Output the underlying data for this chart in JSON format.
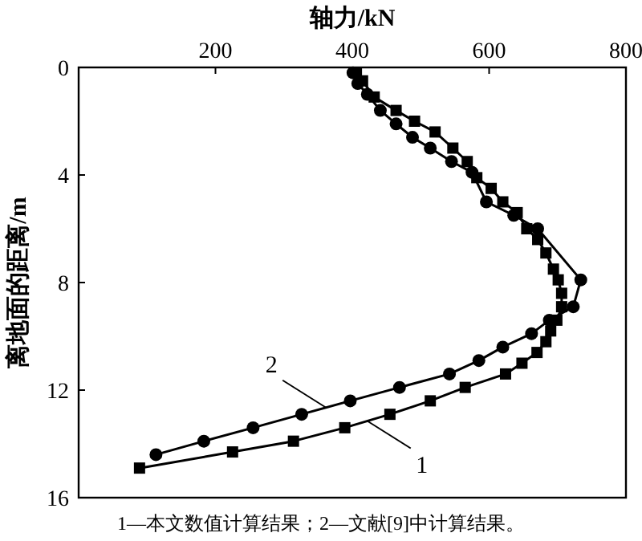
{
  "chart_data": {
    "type": "line",
    "xlabel": "轴力/kN",
    "ylabel": "离地面的距离/m",
    "xlim": [
      0,
      800
    ],
    "xticks": [
      {
        "value": 0,
        "label": null
      },
      200,
      400,
      600,
      800
    ],
    "ylim": [
      16,
      0
    ],
    "yticks": [
      0,
      4,
      8,
      12,
      16
    ],
    "grid": false,
    "line_style": "solid",
    "series": [
      {
        "name": "1",
        "color": "#000000",
        "marker": "square",
        "x": [
          406,
          415,
          432,
          464,
          491,
          521,
          547,
          568,
          582,
          603,
          620,
          641,
          655,
          671,
          683,
          694,
          701,
          706,
          706,
          699,
          690,
          683,
          670,
          648,
          624,
          565,
          514,
          455,
          389,
          314,
          225,
          89
        ],
        "values": [
          0.2,
          0.5,
          1.1,
          1.6,
          2.0,
          2.4,
          3.0,
          3.5,
          4.1,
          4.5,
          5.0,
          5.4,
          6.0,
          6.4,
          6.9,
          7.5,
          7.9,
          8.4,
          8.9,
          9.4,
          9.8,
          10.2,
          10.6,
          11.0,
          11.4,
          11.9,
          12.4,
          12.9,
          13.4,
          13.9,
          14.3,
          14.9
        ]
      },
      {
        "name": "2",
        "color": "#000000",
        "marker": "circle",
        "x": [
          401,
          408,
          422,
          441,
          464,
          488,
          514,
          545,
          575,
          596,
          636,
          671,
          734,
          723,
          688,
          662,
          620,
          585,
          542,
          469,
          397,
          326,
          255,
          183,
          113
        ],
        "values": [
          0.2,
          0.6,
          1.0,
          1.6,
          2.1,
          2.6,
          3.0,
          3.5,
          3.9,
          5.0,
          5.5,
          6.0,
          7.9,
          8.9,
          9.4,
          9.9,
          10.4,
          10.9,
          11.4,
          11.9,
          12.4,
          12.9,
          13.4,
          13.9,
          14.4
        ]
      }
    ],
    "annotations": [
      "1—本文数值计算结果；2—文献[9]中计算结果。"
    ]
  }
}
